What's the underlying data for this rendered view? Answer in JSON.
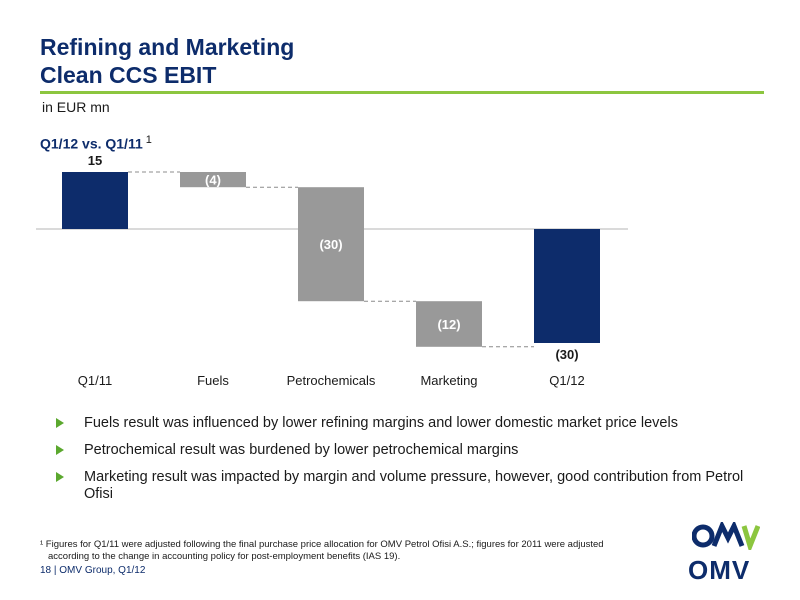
{
  "slide": {
    "title_line1": "Refining and Marketing",
    "title_line2": "Clean CCS EBIT",
    "unit": "in EUR mn",
    "subtitle": "Q1/12 vs. Q1/11",
    "subtitle_footnote_ref": "1"
  },
  "chart_data": {
    "type": "bar",
    "variant": "waterfall",
    "categories": [
      "Q1/11",
      "Fuels",
      "Petrochemicals",
      "Marketing",
      "Q1/12"
    ],
    "values": [
      15,
      -4,
      -30,
      -12,
      -30
    ],
    "bar_kinds": [
      "total",
      "delta",
      "delta",
      "delta",
      "total"
    ],
    "data_labels": [
      "15",
      "(4)",
      "(30)",
      "(12)",
      "(30)"
    ],
    "title": "",
    "xlabel": "",
    "ylabel": "",
    "ylim": [
      -30,
      15
    ],
    "grid": false,
    "legend": "none",
    "colors": {
      "total": "#0d2c6b",
      "delta": "#999999",
      "connector": "#8c8c8c",
      "axis": "#b5b5b5"
    }
  },
  "bullets": [
    "Fuels result was influenced by lower refining margins and lower domestic market price levels",
    "Petrochemical result was burdened by lower petrochemical margins",
    "Marketing result was impacted by margin and volume pressure, however, good contribution from Petrol Ofisi"
  ],
  "footnote": "¹ Figures for Q1/11 were adjusted following the final purchase price allocation for OMV Petrol Ofisi A.S.; figures for 2011 were adjusted according to the change in accounting policy for post-employment benefits (IAS 19).",
  "footer": "18 | OMV Group, Q1/12",
  "logo": {
    "wordmark": "OMV",
    "icon": "omv-logo-icon",
    "colors": {
      "navy": "#0d2c6b",
      "green": "#8cc63f"
    }
  }
}
